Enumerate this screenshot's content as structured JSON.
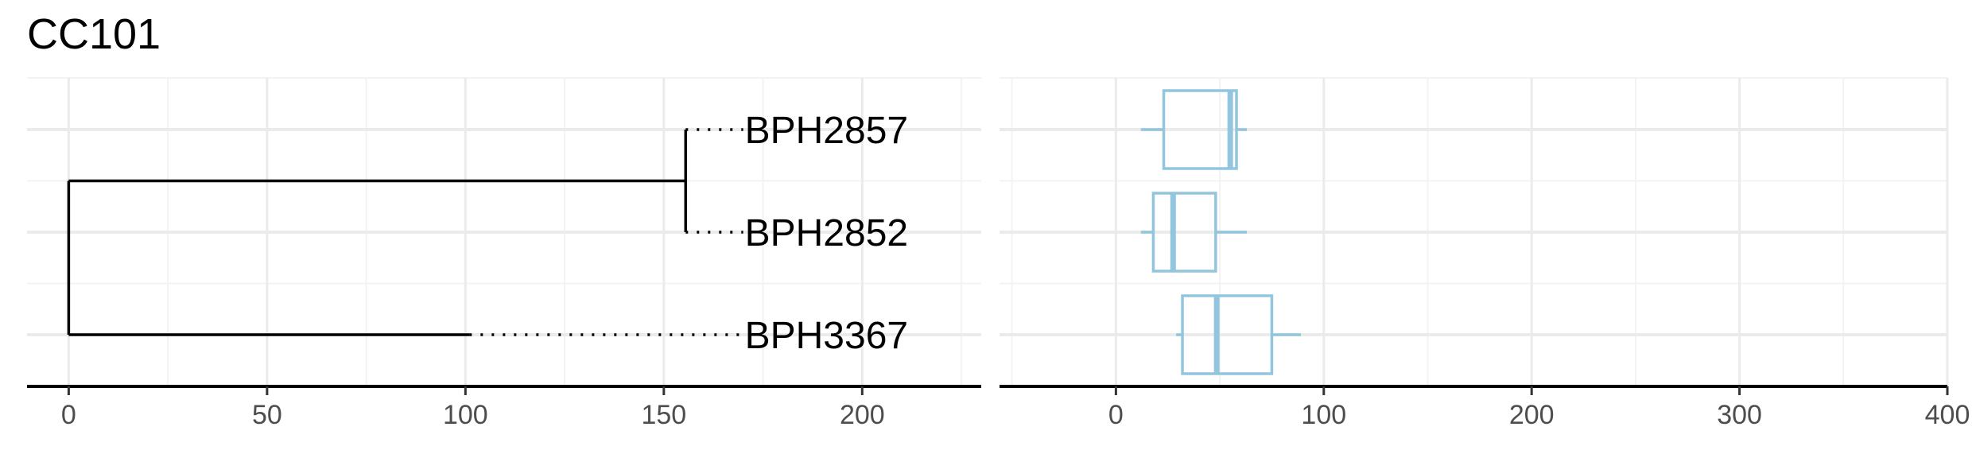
{
  "title": "CC101",
  "colors": {
    "tree": "#000000",
    "box": "#92c5de",
    "grid_major": "#ebebeb",
    "grid_minor": "#f3f3f3",
    "axis": "#000000"
  },
  "chart_data": [
    {
      "type": "tree",
      "xlim": [
        -10.5,
        230
      ],
      "x_ticks": [
        0,
        50,
        100,
        150,
        200
      ],
      "grid": true,
      "nodes": {
        "root_x": 0,
        "inner_x": 155.5
      },
      "tips": [
        {
          "label": "BPH2857",
          "branch_end": 155.5,
          "label_x": 170
        },
        {
          "label": "BPH2852",
          "branch_end": 155.5,
          "label_x": 170
        },
        {
          "label": "BPH3367",
          "branch_end": 101,
          "label_x": 170
        }
      ]
    },
    {
      "type": "box",
      "xlim": [
        -56,
        400
      ],
      "x_ticks": [
        0,
        100,
        200,
        300,
        400
      ],
      "grid": true,
      "series": [
        {
          "category": "BPH2857",
          "whisker_low": 12,
          "q1": 23,
          "median": 55,
          "q3": 58,
          "whisker_high": 63
        },
        {
          "category": "BPH2852",
          "whisker_low": 12,
          "q1": 18,
          "median": 27.5,
          "q3": 48,
          "whisker_high": 63
        },
        {
          "category": "BPH3367",
          "whisker_low": 29,
          "q1": 32,
          "median": 48.5,
          "q3": 75,
          "whisker_high": 89
        }
      ]
    }
  ]
}
